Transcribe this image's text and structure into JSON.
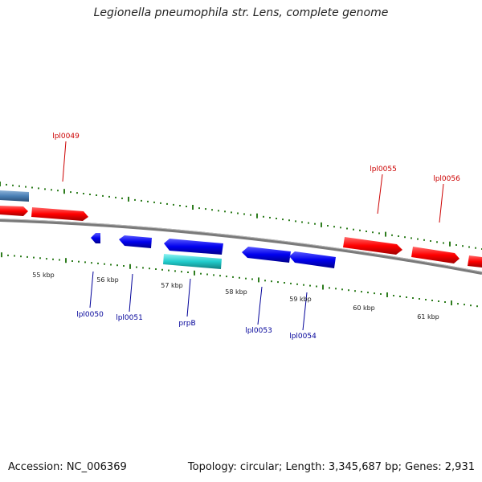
{
  "title": "Legionella pneumophila str. Lens, complete genome",
  "footer": {
    "accession": "Accession: NC_006369",
    "summary": "Topology: circular; Length: 3,345,687 bp; Genes: 2,931"
  },
  "colors": {
    "background": "#ffffff",
    "backbone": "#7a7a7a",
    "tick": "#2e7d1e",
    "forward_gene": "#ff0000",
    "reverse_gene": "#0000ee",
    "rna_gene": "#22cccc",
    "other_gene": "#4a7fb5",
    "forward_label": "#cc0000",
    "reverse_label": "#000099",
    "scale_label": "#222222"
  },
  "scale_labels": [
    "55 kbp",
    "56 kbp",
    "57 kbp",
    "58 kbp",
    "59 kbp",
    "60 kbp",
    "61 kbp"
  ],
  "gene_labels": {
    "forward": [
      "lpl0049",
      "lpl0055",
      "lpl0056"
    ],
    "reverse": [
      "lpl0050",
      "lpl0051",
      "prpB",
      "lpl0053",
      "lpl0054"
    ]
  }
}
